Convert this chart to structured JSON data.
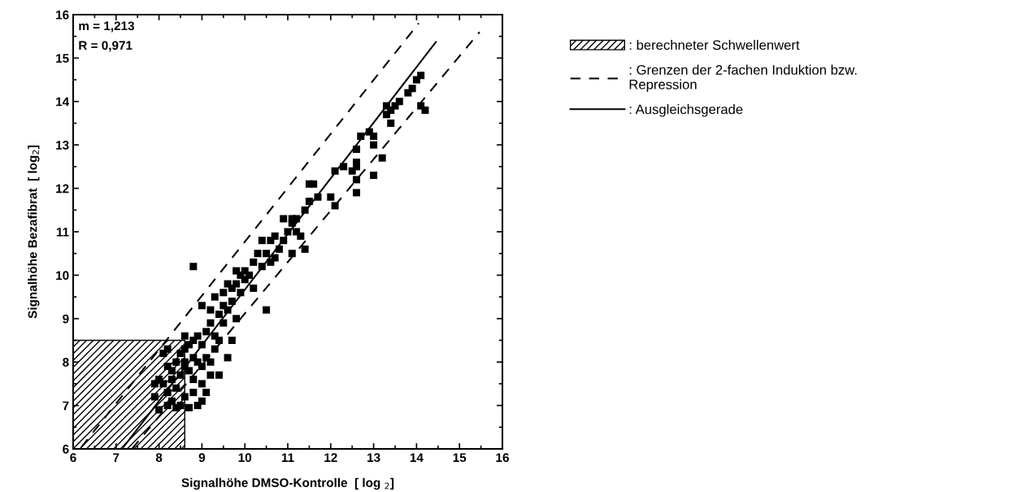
{
  "chart_data": {
    "type": "scatter",
    "xlabel": "Signalhöhe DMSO-Kontrolle  [ log $_{2}$]",
    "ylabel": "Signalhöhe Bezafibrat  [ log$_{2}$]",
    "xlim": [
      6,
      16
    ],
    "ylim": [
      6,
      16
    ],
    "xticks": [
      6,
      7,
      8,
      9,
      10,
      11,
      12,
      13,
      14,
      15,
      16
    ],
    "yticks": [
      6,
      7,
      8,
      9,
      10,
      11,
      12,
      13,
      14,
      15,
      16
    ],
    "grid": false,
    "legend": "right",
    "annotations": [
      "m = 1,213",
      "R = 0,971"
    ],
    "series": [
      {
        "type": "area",
        "name": ": berechneter Schwellenwert",
        "color": "#000000",
        "x": [
          6,
          8.6
        ],
        "values": [
          8.5,
          8.5
        ]
      },
      {
        "type": "line",
        "name": ": Grenzen der 2-fachen Induktion bzw.\nRepression",
        "color": "#000000",
        "line_style": "dashed",
        "x": [
          6.19,
          14.05
        ],
        "values": [
          6.04,
          15.8
        ]
      },
      {
        "type": "line",
        "color": "#000000",
        "line_style": "dashed",
        "x": [
          7.37,
          15.47
        ],
        "values": [
          6,
          15.6
        ]
      },
      {
        "type": "line",
        "name": ": Ausgleichsgerade",
        "color": "#000000",
        "line_style": "solid",
        "x": [
          7.17,
          14.45
        ],
        "values": [
          6.04,
          15.37
        ]
      },
      {
        "color": "#000000",
        "marker": "square",
        "x": [
          14.1,
          14.0,
          13.9,
          13.8,
          13.6,
          13.5,
          13.4,
          13.3,
          13.4,
          14.1,
          14.2,
          13.3,
          12.9,
          12.7,
          12.6,
          12.6,
          12.6,
          12.5,
          12.3,
          12.6,
          12.6,
          13.0,
          13.0,
          13.2,
          13.0,
          12.1,
          12.0,
          12.1,
          11.6,
          11.5,
          11.7,
          11.5,
          11.4,
          11.2,
          11.1,
          11.2,
          11.3,
          11.0,
          11.1,
          11.4,
          10.9,
          10.7,
          10.6,
          10.5,
          10.3,
          10.2,
          10.0,
          10.7,
          10.6,
          10.4,
          10.5,
          9.9,
          9.8,
          9.6,
          9.5,
          9.3,
          9.5,
          9.4,
          9.2,
          9.0,
          9.7,
          9.9,
          10.0,
          9.8,
          9.7,
          9.6,
          8.8,
          9.2,
          9.1,
          8.9,
          8.8,
          9.0,
          9.3,
          9.2,
          9.4,
          8.7,
          8.6,
          8.5,
          8.4,
          8.2,
          8.1,
          8.9,
          8.7,
          8.5,
          8.3,
          8.2,
          8.0,
          7.9,
          7.9,
          8.0,
          8.2,
          8.3,
          8.4,
          8.6,
          8.8,
          9.0,
          9.1,
          9.0,
          8.5,
          8.7,
          8.9,
          9.2,
          9.4,
          8.1,
          8.3,
          9.0,
          8.8,
          8.6,
          9.1,
          9.3,
          9.5,
          9.6,
          8.2,
          8.4,
          9.7,
          9.8,
          10.1,
          10.2,
          10.4,
          10.8,
          10.9,
          11.1,
          8.6,
          8.6,
          8.8
        ],
        "values": [
          14.6,
          14.5,
          14.3,
          14.2,
          14.0,
          13.9,
          13.8,
          13.7,
          13.5,
          13.9,
          13.8,
          13.9,
          13.3,
          13.2,
          12.9,
          12.6,
          12.5,
          12.4,
          12.5,
          12.2,
          11.9,
          13.2,
          13.0,
          12.7,
          12.3,
          12.4,
          11.8,
          11.6,
          12.1,
          12.1,
          11.8,
          11.7,
          11.5,
          11.3,
          11.2,
          11.0,
          10.9,
          11.0,
          10.5,
          10.6,
          10.8,
          10.9,
          10.8,
          10.5,
          10.5,
          10.3,
          10.1,
          10.4,
          10.3,
          10.2,
          9.2,
          10.0,
          9.8,
          9.8,
          9.6,
          9.5,
          9.3,
          9.1,
          9.2,
          9.3,
          9.4,
          9.6,
          9.9,
          9.0,
          8.5,
          8.1,
          10.2,
          8.9,
          8.7,
          8.6,
          8.5,
          8.4,
          8.3,
          8.0,
          8.5,
          8.4,
          8.3,
          8.2,
          8.0,
          8.3,
          8.2,
          8.0,
          7.8,
          7.7,
          7.8,
          7.9,
          7.6,
          7.5,
          7.2,
          6.9,
          7.3,
          7.1,
          7.4,
          7.2,
          7.3,
          7.5,
          7.3,
          7.1,
          7.0,
          6.95,
          7.0,
          7.7,
          7.7,
          7.5,
          7.6,
          7.9,
          8.1,
          7.9,
          8.1,
          8.6,
          8.9,
          9.2,
          7.0,
          6.95,
          9.7,
          10.1,
          10.0,
          9.7,
          10.8,
          10.6,
          11.3,
          11.3,
          8.6,
          8.0,
          7.6
        ]
      }
    ]
  }
}
